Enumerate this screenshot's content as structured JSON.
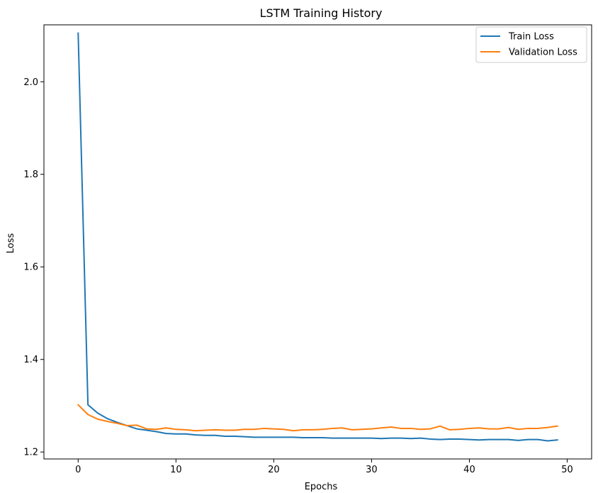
{
  "chart_data": {
    "type": "line",
    "title": "LSTM Training History",
    "xlabel": "Epochs",
    "ylabel": "Loss",
    "xlim": [
      -3.5,
      52.5
    ],
    "ylim": [
      1.185,
      2.123
    ],
    "xticks": [
      0,
      10,
      20,
      30,
      40,
      50
    ],
    "xtick_labels": [
      "0",
      "10",
      "20",
      "30",
      "40",
      "50"
    ],
    "yticks": [
      1.2,
      1.4,
      1.6,
      1.8,
      2.0
    ],
    "ytick_labels": [
      "1.2",
      "1.4",
      "1.6",
      "1.8",
      "2.0"
    ],
    "grid": false,
    "legend_position": "top-right",
    "x": [
      0,
      1,
      2,
      3,
      4,
      5,
      6,
      7,
      8,
      9,
      10,
      11,
      12,
      13,
      14,
      15,
      16,
      17,
      18,
      19,
      20,
      21,
      22,
      23,
      24,
      25,
      26,
      27,
      28,
      29,
      30,
      31,
      32,
      33,
      34,
      35,
      36,
      37,
      38,
      39,
      40,
      41,
      42,
      43,
      44,
      45,
      46,
      47,
      48,
      49
    ],
    "series": [
      {
        "name": "Train Loss",
        "color": "#1f77b4",
        "values": [
          2.105,
          1.302,
          1.284,
          1.272,
          1.264,
          1.257,
          1.25,
          1.247,
          1.244,
          1.24,
          1.239,
          1.239,
          1.237,
          1.236,
          1.236,
          1.234,
          1.234,
          1.233,
          1.232,
          1.232,
          1.232,
          1.232,
          1.232,
          1.231,
          1.231,
          1.231,
          1.23,
          1.23,
          1.23,
          1.23,
          1.23,
          1.229,
          1.23,
          1.23,
          1.229,
          1.23,
          1.228,
          1.227,
          1.228,
          1.228,
          1.227,
          1.226,
          1.227,
          1.227,
          1.227,
          1.225,
          1.227,
          1.227,
          1.224,
          1.226
        ]
      },
      {
        "name": "Validation Loss",
        "color": "#ff7f0e",
        "values": [
          1.302,
          1.281,
          1.271,
          1.266,
          1.262,
          1.257,
          1.258,
          1.25,
          1.249,
          1.252,
          1.249,
          1.248,
          1.246,
          1.247,
          1.248,
          1.247,
          1.247,
          1.249,
          1.249,
          1.251,
          1.25,
          1.249,
          1.246,
          1.248,
          1.248,
          1.249,
          1.251,
          1.252,
          1.248,
          1.249,
          1.25,
          1.252,
          1.254,
          1.251,
          1.251,
          1.249,
          1.25,
          1.256,
          1.248,
          1.249,
          1.251,
          1.252,
          1.25,
          1.25,
          1.253,
          1.249,
          1.251,
          1.251,
          1.253,
          1.256
        ]
      }
    ]
  }
}
